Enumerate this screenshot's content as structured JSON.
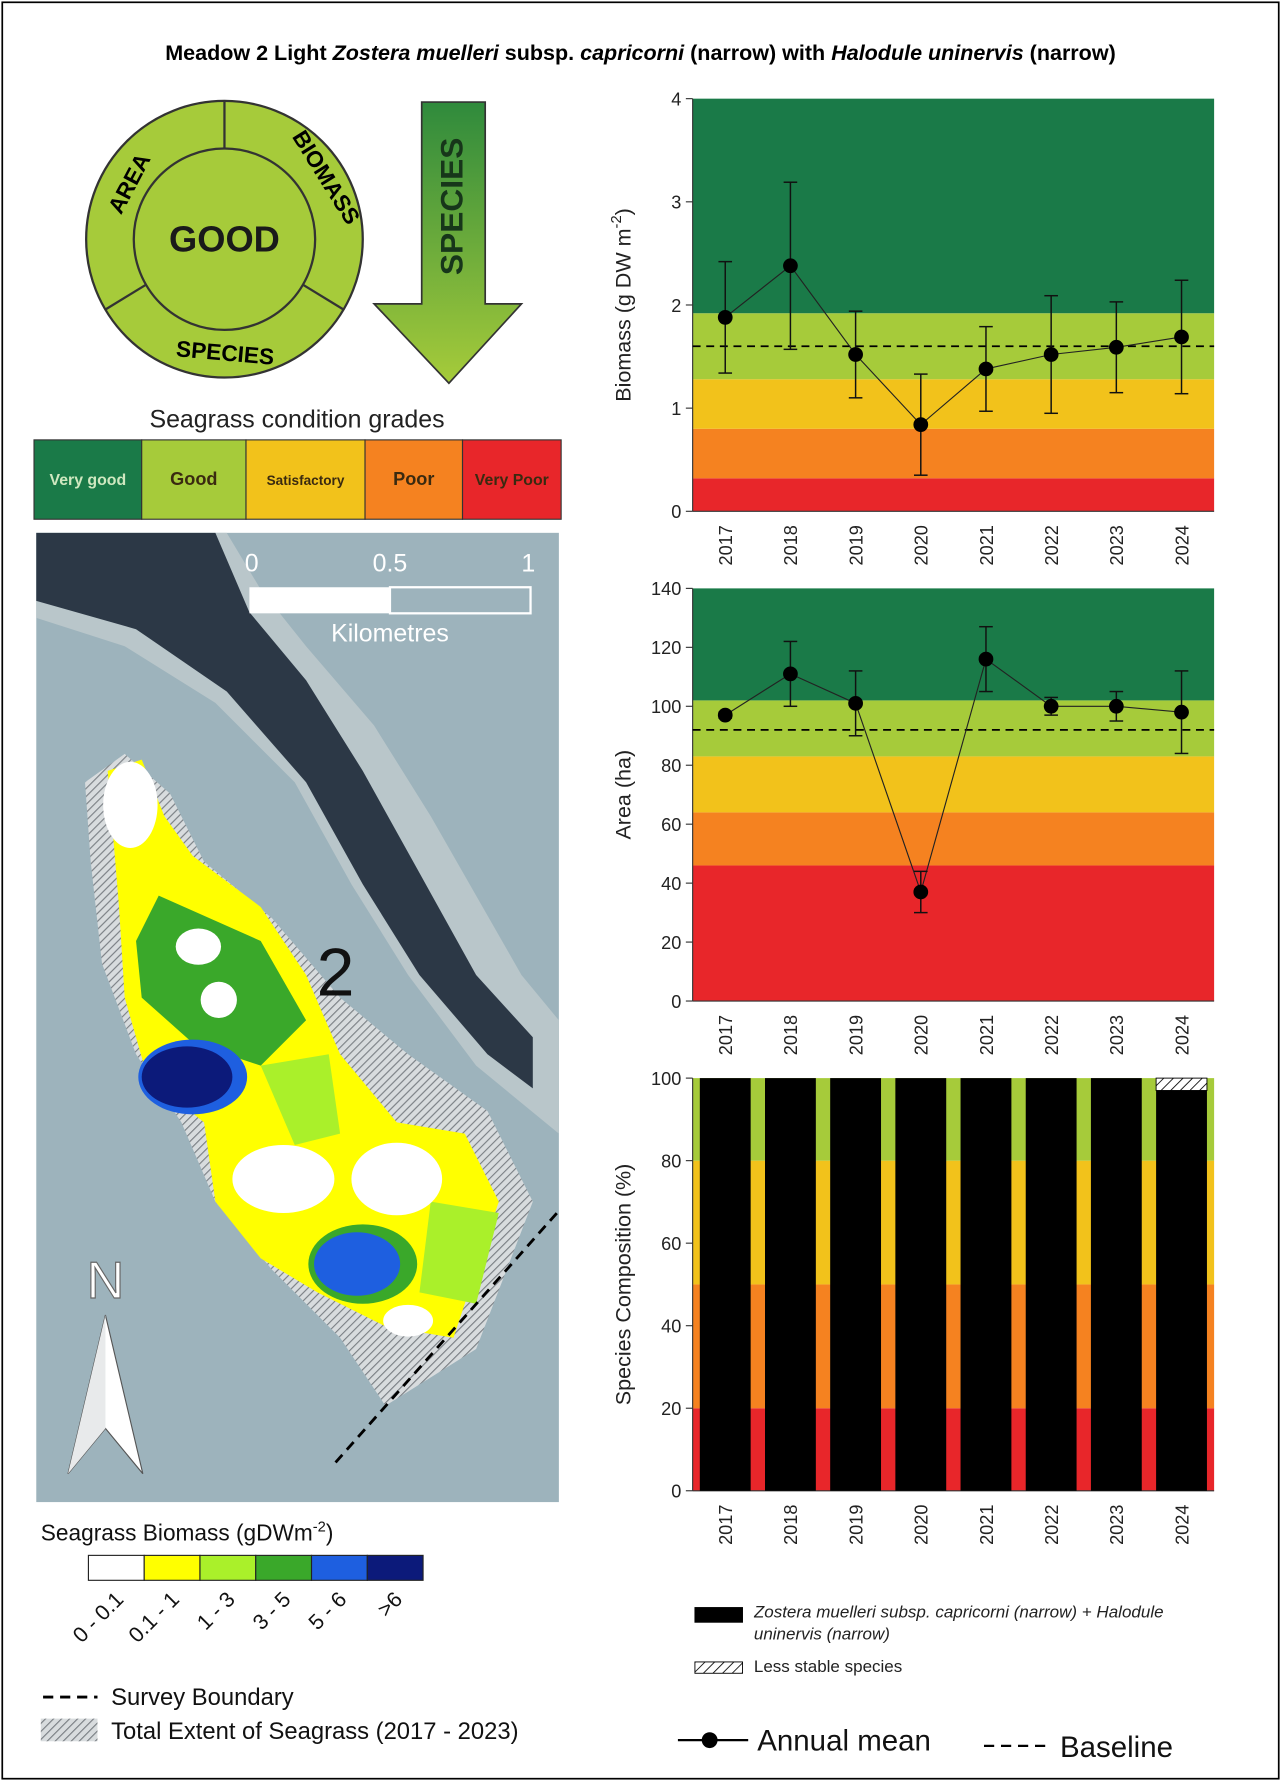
{
  "title": [
    "Meadow 2 Light ",
    "Zostera muelleri",
    " subsp. ",
    "capricorni",
    " (narrow) with ",
    "Halodule uninervis",
    " (narrow)"
  ],
  "report_card": {
    "grade": "GOOD",
    "area": "AREA",
    "biomass": "BIOMASS",
    "species": "SPECIES",
    "arrow": "SPECIES"
  },
  "condition_grades": {
    "title": "Seagrass condition grades",
    "grades": [
      {
        "label": "Very good",
        "color": "#1a7a48"
      },
      {
        "label": "Good",
        "color": "#a6cb3a"
      },
      {
        "label": "Satisfactory",
        "color": "#f2c21b"
      },
      {
        "label": "Poor",
        "color": "#f58220"
      },
      {
        "label": "Very Poor",
        "color": "#e8262a"
      }
    ]
  },
  "map": {
    "scale": [
      "0",
      "0.5",
      "1"
    ],
    "scale_unit": "Kilometres",
    "meadow": "2",
    "north": "N"
  },
  "map_legend": {
    "title": [
      "Seagrass Biomass (gDWm",
      "-2",
      ")"
    ],
    "classes": [
      {
        "label": "0 - 0.1",
        "color": "#ffffff"
      },
      {
        "label": "0.1 - 1",
        "color": "#ffff00"
      },
      {
        "label": "1 - 3",
        "color": "#aaf02a"
      },
      {
        "label": "3 - 5",
        "color": "#3aa82a"
      },
      {
        "label": "5 - 6",
        "color": "#1e5fe0"
      },
      {
        "label": ">6",
        "color": "#0c1a7a"
      }
    ],
    "survey_boundary": "Survey Boundary",
    "extent": "Total Extent of Seagrass (2017 - 2023)"
  },
  "legend": {
    "annual_mean": "Annual mean",
    "baseline": "Baseline"
  },
  "chart_data": [
    {
      "type": "line",
      "ylabel": [
        "Biomass (g DW m",
        "-2",
        ")"
      ],
      "categories": [
        "2017",
        "2018",
        "2019",
        "2020",
        "2021",
        "2022",
        "2023",
        "2024"
      ],
      "values": [
        1.88,
        2.38,
        1.52,
        0.84,
        1.38,
        1.52,
        1.59,
        1.69
      ],
      "errors": [
        0.54,
        0.81,
        0.42,
        0.49,
        0.41,
        0.57,
        0.44,
        0.55
      ],
      "baseline": 1.6,
      "ylim": [
        0,
        4
      ],
      "yticks": [
        0,
        1,
        2,
        3,
        4
      ],
      "bands": [
        {
          "from": 0,
          "to": 0.32,
          "color": "#e8262a"
        },
        {
          "from": 0.32,
          "to": 0.8,
          "color": "#f58220"
        },
        {
          "from": 0.8,
          "to": 1.28,
          "color": "#f2c21b"
        },
        {
          "from": 1.28,
          "to": 1.92,
          "color": "#a6cb3a"
        },
        {
          "from": 1.92,
          "to": 4,
          "color": "#1a7a48"
        }
      ]
    },
    {
      "type": "line",
      "ylabel": [
        "Area (ha)"
      ],
      "categories": [
        "2017",
        "2018",
        "2019",
        "2020",
        "2021",
        "2022",
        "2023",
        "2024"
      ],
      "values": [
        97,
        111,
        101,
        37,
        116,
        100,
        100,
        98
      ],
      "errors": [
        1,
        11,
        11,
        7,
        11,
        3,
        5,
        14
      ],
      "baseline": 92,
      "ylim": [
        0,
        140
      ],
      "yticks": [
        0,
        20,
        40,
        60,
        80,
        100,
        120,
        140
      ],
      "bands": [
        {
          "from": 0,
          "to": 46,
          "color": "#e8262a"
        },
        {
          "from": 46,
          "to": 64,
          "color": "#f58220"
        },
        {
          "from": 64,
          "to": 83,
          "color": "#f2c21b"
        },
        {
          "from": 83,
          "to": 102,
          "color": "#a6cb3a"
        },
        {
          "from": 102,
          "to": 140,
          "color": "#1a7a48"
        }
      ]
    },
    {
      "type": "bar",
      "ylabel": [
        "Species Composition (%)"
      ],
      "categories": [
        "2017",
        "2018",
        "2019",
        "2020",
        "2021",
        "2022",
        "2023",
        "2024"
      ],
      "series": [
        {
          "name": "Zostera muelleri subsp. capricorni (narrow) + Halodule uninervis (narrow)",
          "color": "#000000",
          "values": [
            100,
            100,
            100,
            100,
            100,
            100,
            100,
            97
          ]
        },
        {
          "name": "Less stable species",
          "color": "#ffffff",
          "hatch": true,
          "values": [
            0,
            0,
            0,
            0,
            0,
            0,
            0,
            3
          ]
        }
      ],
      "ylim": [
        0,
        100
      ],
      "yticks": [
        0,
        20,
        40,
        60,
        80,
        100
      ],
      "bands": [
        {
          "from": 0,
          "to": 20,
          "color": "#e8262a"
        },
        {
          "from": 20,
          "to": 50,
          "color": "#f58220"
        },
        {
          "from": 50,
          "to": 80,
          "color": "#f2c21b"
        },
        {
          "from": 80,
          "to": 100,
          "color": "#a6cb3a"
        }
      ]
    }
  ]
}
